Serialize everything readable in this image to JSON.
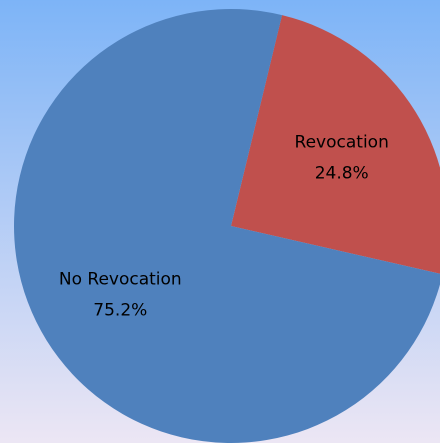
{
  "chart_data": {
    "type": "pie",
    "categories": [
      "Revocation",
      "No Revocation"
    ],
    "values": [
      24.8,
      75.2
    ],
    "value_labels": [
      "24.8%",
      "75.2%"
    ],
    "colors": [
      "#c0504d",
      "#4f81bd"
    ]
  }
}
